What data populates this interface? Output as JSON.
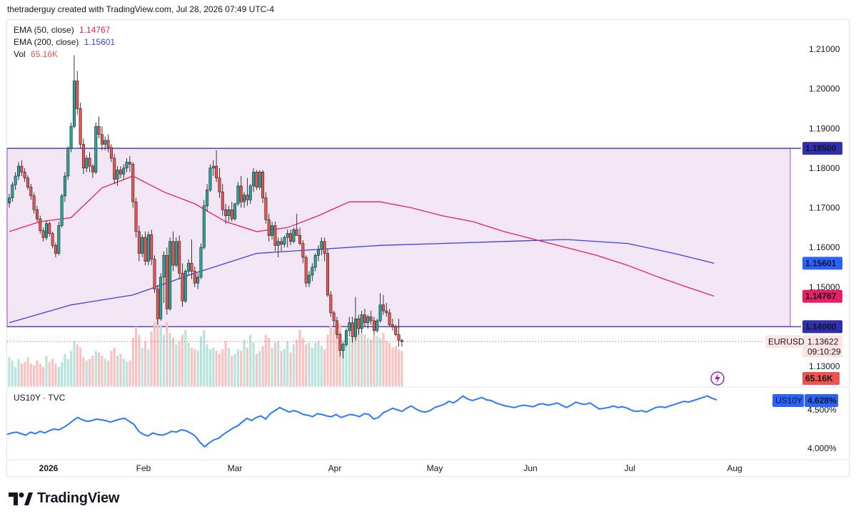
{
  "header": {
    "attribution": "thetraderguy created with TradingView.com, Jul 28, 2026 07:49 UTC-4"
  },
  "legend": {
    "ema50_label": "EMA (50, close)",
    "ema50_value": "1.14767",
    "ema200_label": "EMA (200, close)",
    "ema200_value": "1.15601",
    "vol_label": "Vol",
    "vol_value": "65.16K"
  },
  "watermark": "EURUSD",
  "lower_pane": {
    "label": "US10Y · TVC"
  },
  "brand": {
    "name": "TradingView"
  },
  "colors": {
    "up": "#26a69a",
    "down": "#ef5350",
    "up_vol": "#b9e2dc",
    "down_vol": "#f7c3c2",
    "ema50": "#e91e63",
    "ema200": "#3f3fe0",
    "box_fill": "#f2e6f5",
    "box_border": "#5b3fc4",
    "us10y": "#2979ff",
    "last_price": "#f23645"
  },
  "chart_data": [
    {
      "type": "candlestick",
      "symbol": "EURUSD",
      "ylim": [
        1.122,
        1.2155
      ],
      "price_ticks": [
        "1.21000",
        "1.20000",
        "1.19000",
        "1.18000",
        "1.17000",
        "1.16000",
        "1.15000",
        "1.13000"
      ],
      "x_labels": [
        "2026",
        "Feb",
        "Mar",
        "Apr",
        "May",
        "Jun",
        "Jul",
        "Aug"
      ],
      "ohlc_daily": [
        [
          1.1712,
          1.1735,
          1.17,
          1.1725
        ],
        [
          1.1725,
          1.1765,
          1.1715,
          1.1758
        ],
        [
          1.1758,
          1.179,
          1.1745,
          1.178
        ],
        [
          1.178,
          1.1815,
          1.177,
          1.1805
        ],
        [
          1.1805,
          1.182,
          1.178,
          1.179
        ],
        [
          1.179,
          1.18,
          1.1765,
          1.1775
        ],
        [
          1.1775,
          1.1782,
          1.1745,
          1.1752
        ],
        [
          1.1752,
          1.176,
          1.172,
          1.173
        ],
        [
          1.173,
          1.1738,
          1.1685,
          1.1695
        ],
        [
          1.1695,
          1.1705,
          1.1665,
          1.1672
        ],
        [
          1.1672,
          1.168,
          1.1635,
          1.1642
        ],
        [
          1.1642,
          1.165,
          1.1615,
          1.1625
        ],
        [
          1.1625,
          1.1668,
          1.1618,
          1.166
        ],
        [
          1.166,
          1.1665,
          1.1628,
          1.1635
        ],
        [
          1.1635,
          1.164,
          1.1598,
          1.1605
        ],
        [
          1.1605,
          1.1612,
          1.1575,
          1.1585
        ],
        [
          1.1585,
          1.1665,
          1.158,
          1.1655
        ],
        [
          1.1655,
          1.1735,
          1.165,
          1.173
        ],
        [
          1.173,
          1.179,
          1.1715,
          1.178
        ],
        [
          1.178,
          1.1855,
          1.177,
          1.185
        ],
        [
          1.185,
          1.1915,
          1.184,
          1.1905
        ],
        [
          1.1905,
          1.2085,
          1.19,
          1.202
        ],
        [
          1.202,
          1.2045,
          1.1935,
          1.195
        ],
        [
          1.195,
          1.1965,
          1.185,
          1.186
        ],
        [
          1.186,
          1.1875,
          1.1785,
          1.18
        ],
        [
          1.18,
          1.1832,
          1.179,
          1.1825
        ],
        [
          1.1825,
          1.184,
          1.179,
          1.1805
        ],
        [
          1.1805,
          1.181,
          1.1775,
          1.179
        ],
        [
          1.179,
          1.1915,
          1.1785,
          1.1905
        ],
        [
          1.1905,
          1.193,
          1.1875,
          1.1885
        ],
        [
          1.1885,
          1.1905,
          1.1845,
          1.186
        ],
        [
          1.186,
          1.188,
          1.1845,
          1.187
        ],
        [
          1.187,
          1.1885,
          1.184,
          1.1852
        ],
        [
          1.1852,
          1.186,
          1.1815,
          1.1825
        ],
        [
          1.1825,
          1.1835,
          1.176,
          1.1772
        ],
        [
          1.1772,
          1.1805,
          1.1755,
          1.1795
        ],
        [
          1.1795,
          1.1805,
          1.1775,
          1.1785
        ],
        [
          1.1785,
          1.181,
          1.177,
          1.18
        ],
        [
          1.18,
          1.1825,
          1.179,
          1.1815
        ],
        [
          1.1815,
          1.183,
          1.179,
          1.181
        ],
        [
          1.181,
          1.1815,
          1.17,
          1.1715
        ],
        [
          1.1715,
          1.1725,
          1.1625,
          1.164
        ],
        [
          1.164,
          1.1655,
          1.1565,
          1.1585
        ],
        [
          1.1585,
          1.1632,
          1.1575,
          1.1625
        ],
        [
          1.1625,
          1.164,
          1.1555,
          1.1565
        ],
        [
          1.1565,
          1.164,
          1.1555,
          1.1632
        ],
        [
          1.1632,
          1.1645,
          1.1555,
          1.157
        ],
        [
          1.157,
          1.158,
          1.1485,
          1.1495
        ],
        [
          1.1495,
          1.1505,
          1.1405,
          1.142
        ],
        [
          1.142,
          1.1535,
          1.1415,
          1.1525
        ],
        [
          1.1525,
          1.159,
          1.146,
          1.158
        ],
        [
          1.158,
          1.16,
          1.143,
          1.1445
        ],
        [
          1.1445,
          1.1625,
          1.144,
          1.1615
        ],
        [
          1.1615,
          1.164,
          1.154,
          1.1555
        ],
        [
          1.1555,
          1.1625,
          1.155,
          1.1615
        ],
        [
          1.1615,
          1.163,
          1.152,
          1.1535
        ],
        [
          1.1535,
          1.156,
          1.145,
          1.1465
        ],
        [
          1.1465,
          1.1545,
          1.146,
          1.154
        ],
        [
          1.154,
          1.157,
          1.153,
          1.156
        ],
        [
          1.156,
          1.162,
          1.152,
          1.154
        ],
        [
          1.154,
          1.1552,
          1.15,
          1.151
        ],
        [
          1.151,
          1.1535,
          1.1495,
          1.1525
        ],
        [
          1.1525,
          1.161,
          1.152,
          1.16
        ],
        [
          1.16,
          1.172,
          1.1595,
          1.1705
        ],
        [
          1.1705,
          1.176,
          1.169,
          1.1745
        ],
        [
          1.1745,
          1.181,
          1.174,
          1.18
        ],
        [
          1.18,
          1.182,
          1.178,
          1.1805
        ],
        [
          1.1805,
          1.1845,
          1.1765,
          1.1775
        ],
        [
          1.1775,
          1.18,
          1.1725,
          1.174
        ],
        [
          1.174,
          1.176,
          1.168,
          1.1695
        ],
        [
          1.1695,
          1.171,
          1.166,
          1.168
        ],
        [
          1.168,
          1.1705,
          1.1665,
          1.1695
        ],
        [
          1.1695,
          1.1715,
          1.1665,
          1.1672
        ],
        [
          1.1672,
          1.1712,
          1.1668,
          1.171
        ],
        [
          1.171,
          1.1765,
          1.1705,
          1.1755
        ],
        [
          1.1755,
          1.178,
          1.17,
          1.1715
        ],
        [
          1.1715,
          1.174,
          1.17,
          1.1732
        ],
        [
          1.1732,
          1.1775,
          1.1705,
          1.172
        ],
        [
          1.172,
          1.176,
          1.171,
          1.1755
        ],
        [
          1.1755,
          1.18,
          1.174,
          1.179
        ],
        [
          1.179,
          1.1795,
          1.1745,
          1.1752
        ],
        [
          1.1752,
          1.1795,
          1.1745,
          1.179
        ],
        [
          1.179,
          1.1795,
          1.1712,
          1.1725
        ],
        [
          1.1725,
          1.174,
          1.166,
          1.167
        ],
        [
          1.167,
          1.1685,
          1.1615,
          1.163
        ],
        [
          1.163,
          1.1665,
          1.162,
          1.1655
        ],
        [
          1.1655,
          1.1665,
          1.159,
          1.1605
        ],
        [
          1.1605,
          1.1625,
          1.1575,
          1.1615
        ],
        [
          1.1615,
          1.1625,
          1.159,
          1.1608
        ],
        [
          1.1608,
          1.163,
          1.16,
          1.1625
        ],
        [
          1.1625,
          1.1645,
          1.16,
          1.1635
        ],
        [
          1.1635,
          1.1645,
          1.1605,
          1.1615
        ],
        [
          1.1615,
          1.165,
          1.161,
          1.1645
        ],
        [
          1.1645,
          1.1685,
          1.163,
          1.163
        ],
        [
          1.163,
          1.165,
          1.1605,
          1.161
        ],
        [
          1.161,
          1.1618,
          1.156,
          1.1575
        ],
        [
          1.1575,
          1.158,
          1.15,
          1.151
        ],
        [
          1.151,
          1.154,
          1.15,
          1.153
        ],
        [
          1.153,
          1.156,
          1.1515,
          1.155
        ],
        [
          1.155,
          1.1585,
          1.154,
          1.158
        ],
        [
          1.158,
          1.1605,
          1.1565,
          1.1595
        ],
        [
          1.1595,
          1.1625,
          1.158,
          1.1615
        ],
        [
          1.1615,
          1.1625,
          1.1565,
          1.1585
        ],
        [
          1.1585,
          1.1595,
          1.1475,
          1.148
        ],
        [
          1.148,
          1.149,
          1.1425,
          1.1435
        ],
        [
          1.1435,
          1.144,
          1.14,
          1.1415
        ],
        [
          1.1415,
          1.1425,
          1.137,
          1.138
        ],
        [
          1.138,
          1.1385,
          1.1325,
          1.134
        ],
        [
          1.134,
          1.136,
          1.132,
          1.1355
        ],
        [
          1.1355,
          1.1395,
          1.135,
          1.139
        ],
        [
          1.139,
          1.1425,
          1.1375,
          1.141
        ],
        [
          1.141,
          1.1425,
          1.136,
          1.1375
        ],
        [
          1.1375,
          1.1475,
          1.1365,
          1.142
        ],
        [
          1.142,
          1.143,
          1.138,
          1.1395
        ],
        [
          1.1395,
          1.144,
          1.1385,
          1.143
        ],
        [
          1.143,
          1.1445,
          1.14,
          1.141
        ],
        [
          1.141,
          1.143,
          1.1395,
          1.1425
        ],
        [
          1.1425,
          1.144,
          1.1405,
          1.1415
        ],
        [
          1.1415,
          1.1425,
          1.138,
          1.139
        ],
        [
          1.139,
          1.142,
          1.1385,
          1.1415
        ],
        [
          1.1415,
          1.1485,
          1.141,
          1.1455
        ],
        [
          1.1455,
          1.148,
          1.143,
          1.144
        ],
        [
          1.144,
          1.146,
          1.1425,
          1.1435
        ],
        [
          1.1435,
          1.1445,
          1.14,
          1.1405
        ],
        [
          1.1405,
          1.142,
          1.139,
          1.14
        ],
        [
          1.14,
          1.1405,
          1.1375,
          1.138
        ],
        [
          1.138,
          1.142,
          1.135,
          1.1365
        ],
        [
          1.1365,
          1.137,
          1.135,
          1.1362
        ]
      ],
      "volume_k": [
        90,
        80,
        60,
        85,
        70,
        75,
        90,
        70,
        65,
        80,
        70,
        60,
        95,
        75,
        85,
        70,
        60,
        75,
        100,
        85,
        110,
        140,
        130,
        120,
        90,
        80,
        85,
        95,
        110,
        105,
        95,
        85,
        80,
        110,
        120,
        95,
        100,
        85,
        75,
        80,
        150,
        185,
        160,
        120,
        140,
        115,
        170,
        200,
        225,
        190,
        160,
        200,
        165,
        150,
        130,
        140,
        160,
        175,
        135,
        120,
        115,
        110,
        155,
        175,
        130,
        115,
        120,
        110,
        100,
        115,
        140,
        120,
        95,
        100,
        115,
        110,
        145,
        120,
        160,
        135,
        100,
        110,
        125,
        160,
        150,
        120,
        135,
        140,
        110,
        115,
        140,
        105,
        130,
        145,
        175,
        150,
        130,
        135,
        120,
        135,
        140,
        125,
        115,
        160,
        190,
        180,
        200,
        195,
        145,
        135,
        150,
        175,
        200,
        185,
        170,
        160,
        150,
        145,
        160,
        155,
        150,
        165,
        140,
        135,
        120,
        125,
        115,
        110,
        100,
        95
      ],
      "ema50": [
        [
          0,
          1.164
        ],
        [
          10,
          1.1665
        ],
        [
          20,
          1.1675
        ],
        [
          30,
          1.175
        ],
        [
          40,
          1.178
        ],
        [
          50,
          1.174
        ],
        [
          60,
          1.171
        ],
        [
          70,
          1.1665
        ],
        [
          80,
          1.164
        ],
        [
          90,
          1.165
        ],
        [
          100,
          1.168
        ],
        [
          110,
          1.1715
        ],
        [
          120,
          1.1715
        ],
        [
          130,
          1.17
        ],
        [
          140,
          1.168
        ],
        [
          150,
          1.1665
        ],
        [
          160,
          1.164
        ],
        [
          170,
          1.162
        ],
        [
          180,
          1.16
        ],
        [
          190,
          1.158
        ],
        [
          200,
          1.1555
        ],
        [
          210,
          1.1525
        ],
        [
          220,
          1.1498
        ],
        [
          228,
          1.1477
        ]
      ],
      "ema200": [
        [
          0,
          1.141
        ],
        [
          20,
          1.1455
        ],
        [
          40,
          1.148
        ],
        [
          60,
          1.1535
        ],
        [
          80,
          1.1585
        ],
        [
          100,
          1.1595
        ],
        [
          120,
          1.1605
        ],
        [
          140,
          1.161
        ],
        [
          160,
          1.1615
        ],
        [
          180,
          1.162
        ],
        [
          200,
          1.161
        ],
        [
          215,
          1.1585
        ],
        [
          228,
          1.156
        ]
      ],
      "range_box": {
        "top": 1.185,
        "bottom": 1.14
      },
      "price_labels": {
        "box_top": "1.18500",
        "ema200": "1.15601",
        "ema50": "1.14767",
        "box_bottom": "1.14000",
        "symbol": "EURUSD",
        "last": "1.13622",
        "countdown": "09:10:29",
        "volume": "65.16K"
      }
    },
    {
      "type": "line",
      "symbol": "US10Y",
      "ylim": [
        3.88,
        4.72
      ],
      "ticks": [
        "4.500%",
        "4.000%"
      ],
      "last_label": "4.628%",
      "values": [
        4.18,
        4.2,
        4.21,
        4.19,
        4.17,
        4.21,
        4.19,
        4.22,
        4.2,
        4.23,
        4.25,
        4.24,
        4.27,
        4.31,
        4.36,
        4.4,
        4.37,
        4.35,
        4.36,
        4.38,
        4.37,
        4.36,
        4.34,
        4.36,
        4.38,
        4.39,
        4.35,
        4.31,
        4.22,
        4.18,
        4.16,
        4.2,
        4.18,
        4.17,
        4.19,
        4.22,
        4.21,
        4.24,
        4.23,
        4.2,
        4.16,
        4.08,
        4.02,
        4.07,
        4.11,
        4.13,
        4.18,
        4.22,
        4.26,
        4.29,
        4.34,
        4.39,
        4.36,
        4.4,
        4.42,
        4.38,
        4.45,
        4.49,
        4.53,
        4.5,
        4.47,
        4.49,
        4.47,
        4.44,
        4.43,
        4.41,
        4.45,
        4.44,
        4.42,
        4.41,
        4.44,
        4.4,
        4.42,
        4.44,
        4.43,
        4.41,
        4.45,
        4.44,
        4.38,
        4.4,
        4.46,
        4.49,
        4.52,
        4.5,
        4.48,
        4.52,
        4.55,
        4.51,
        4.48,
        4.47,
        4.49,
        4.53,
        4.55,
        4.57,
        4.61,
        4.59,
        4.63,
        4.68,
        4.64,
        4.62,
        4.64,
        4.66,
        4.63,
        4.62,
        4.59,
        4.57,
        4.55,
        4.54,
        4.53,
        4.55,
        4.56,
        4.55,
        4.54,
        4.57,
        4.58,
        4.56,
        4.57,
        4.59,
        4.56,
        4.53,
        4.56,
        4.6,
        4.58,
        4.57,
        4.59,
        4.55,
        4.51,
        4.52,
        4.53,
        4.55,
        4.53,
        4.54,
        4.52,
        4.49,
        4.48,
        4.49,
        4.47,
        4.5,
        4.53,
        4.54,
        4.53,
        4.55,
        4.57,
        4.59,
        4.61,
        4.6,
        4.62,
        4.64,
        4.66,
        4.68,
        4.65,
        4.63
      ]
    }
  ]
}
